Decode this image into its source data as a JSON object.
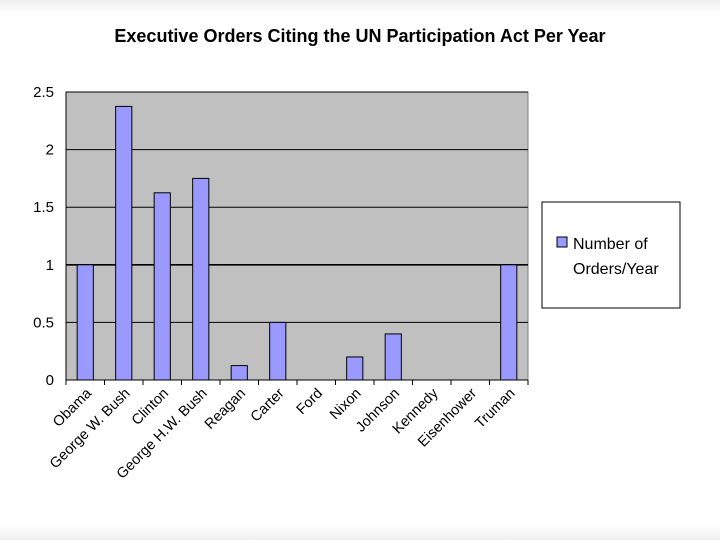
{
  "chart_data": {
    "type": "bar",
    "title": "Executive Orders Citing the UN Participation Act Per Year",
    "xlabel": "",
    "ylabel": "",
    "categories": [
      "Obama",
      "George W. Bush",
      "Clinton",
      "George H.W. Bush",
      "Reagan",
      "Carter",
      "Ford",
      "Nixon",
      "Johnson",
      "Kennedy",
      "Eisenhower",
      "Truman"
    ],
    "series": [
      {
        "name": "Number of Orders/Year",
        "values": [
          1,
          2.375,
          1.625,
          1.75,
          0.125,
          0.5,
          0,
          0.2,
          0.4,
          0,
          0,
          1
        ]
      }
    ],
    "ylim": [
      0,
      2.5
    ],
    "yticks": [
      "0",
      "0.5",
      "1",
      "1.5",
      "2",
      "2.5"
    ],
    "ytick_values": [
      0,
      0.5,
      1,
      1.5,
      2,
      2.5
    ],
    "grid": true,
    "legend_position": "right",
    "colors": {
      "bar_fill": "#9999ff",
      "plot_background": "#c0c0c0",
      "bar_stroke": "#000000"
    }
  }
}
